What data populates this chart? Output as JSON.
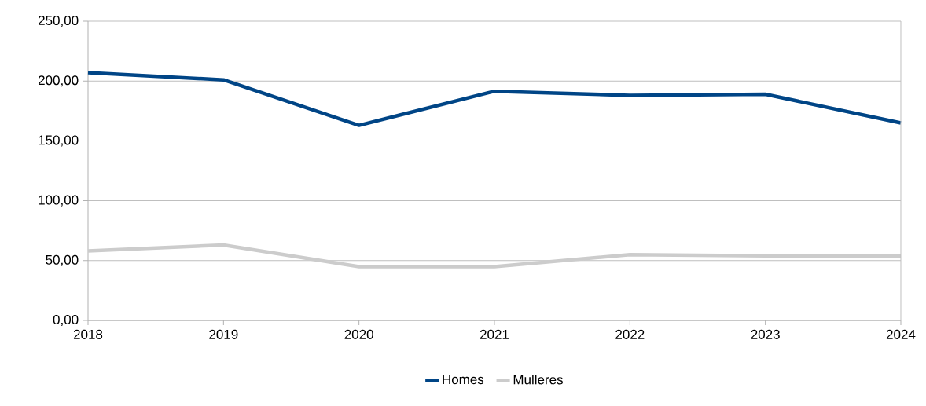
{
  "chart_data": {
    "type": "line",
    "x": [
      2018,
      2019,
      2020,
      2021,
      2022,
      2023,
      2024
    ],
    "series": [
      {
        "name": "Homes",
        "color": "#004586",
        "values": [
          207,
          201,
          163,
          191.5,
          188,
          189,
          165
        ]
      },
      {
        "name": "Mulleres",
        "color": "#cccccc",
        "values": [
          58,
          63,
          45,
          45,
          55,
          54,
          54
        ]
      }
    ],
    "xlim": [
      2018,
      2024
    ],
    "xticks": [
      2018,
      2019,
      2020,
      2021,
      2022,
      2023,
      2024
    ],
    "ylim": [
      0,
      250
    ],
    "yticks": [
      {
        "value": 0,
        "label": "0,00"
      },
      {
        "value": 50,
        "label": "50,00"
      },
      {
        "value": 100,
        "label": "100,00"
      },
      {
        "value": 150,
        "label": "150,00"
      },
      {
        "value": 200,
        "label": "200,00"
      },
      {
        "value": 250,
        "label": "250,00"
      }
    ],
    "grid": "y",
    "legend": "bottom",
    "marker": "none",
    "line_style": "solid"
  }
}
